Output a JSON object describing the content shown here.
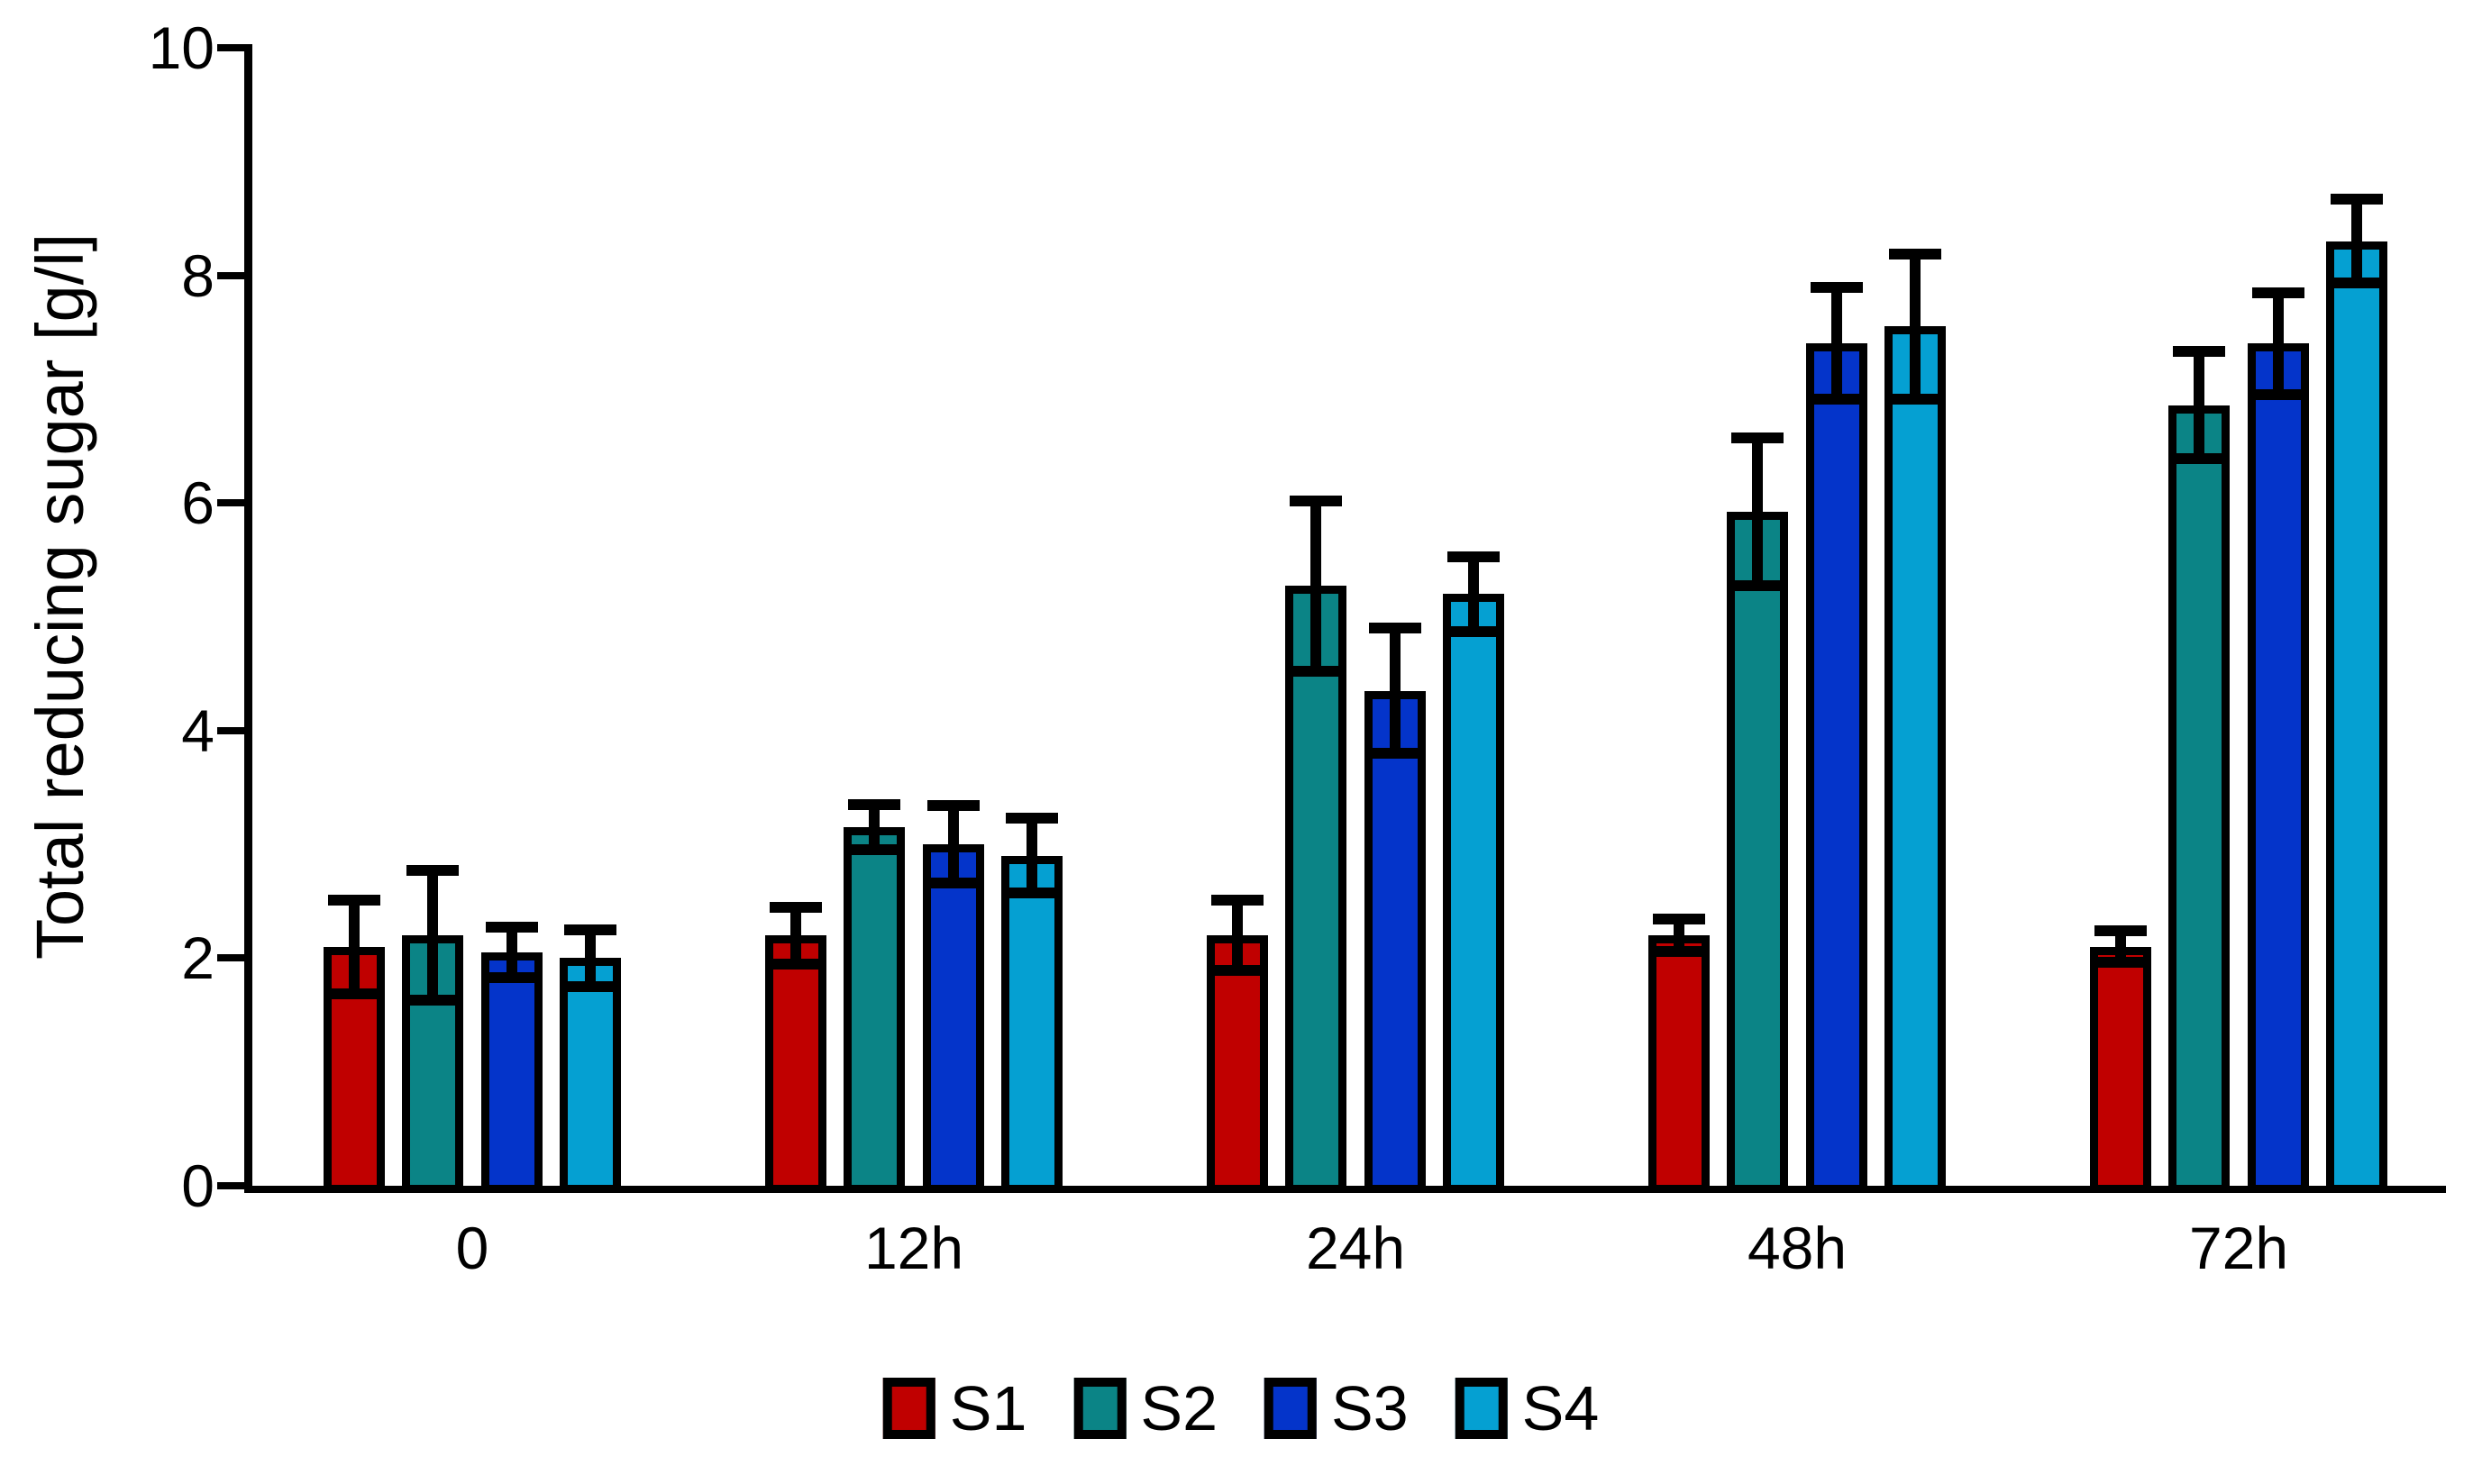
{
  "chart_data": {
    "type": "bar",
    "title": "",
    "xlabel": "",
    "ylabel": "Total reducing sugar [g/l]",
    "ylim": [
      0,
      10
    ],
    "yticks": [
      0,
      2,
      4,
      6,
      8,
      10
    ],
    "categories": [
      "0",
      "12h",
      "24h",
      "48h",
      "72h"
    ],
    "series": [
      {
        "name": "S1",
        "color": "#c00000",
        "values": [
          2.1,
          2.2,
          2.2,
          2.2,
          2.1
        ],
        "errors": [
          0.41,
          0.25,
          0.31,
          0.14,
          0.14
        ]
      },
      {
        "name": "S2",
        "color": "#0b8486",
        "values": [
          2.2,
          3.15,
          5.27,
          5.92,
          6.86
        ],
        "errors": [
          0.57,
          0.2,
          0.75,
          0.65,
          0.47
        ]
      },
      {
        "name": "S3",
        "color": "#0434ca",
        "values": [
          2.05,
          3.0,
          4.35,
          7.4,
          7.4
        ],
        "errors": [
          0.22,
          0.34,
          0.55,
          0.49,
          0.45
        ]
      },
      {
        "name": "S4",
        "color": "#05a0d2",
        "values": [
          2.0,
          2.9,
          5.2,
          7.55,
          8.3
        ],
        "errors": [
          0.25,
          0.33,
          0.33,
          0.64,
          0.37
        ]
      }
    ],
    "legend": [
      "S1",
      "S2",
      "S3",
      "S4"
    ],
    "legend_position": "bottom",
    "grid": false,
    "error_bars": true,
    "background_color": "#ffffff",
    "axis_color": "#000000",
    "text_color": "#000000"
  }
}
